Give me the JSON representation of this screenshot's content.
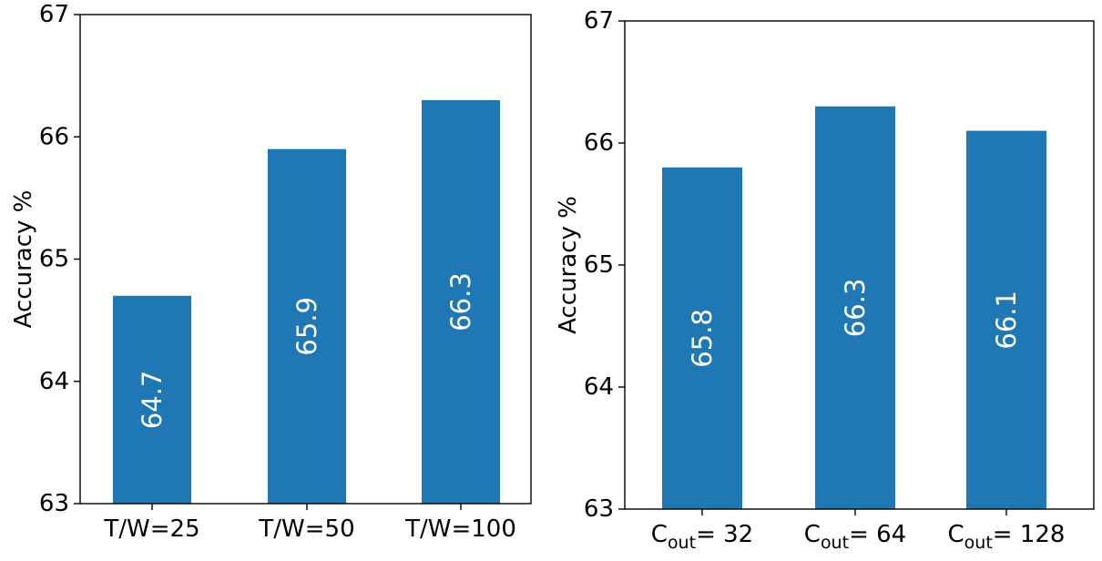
{
  "chart_data": [
    {
      "type": "bar",
      "title": "",
      "xlabel": "",
      "ylabel": "Accuracy %",
      "ylim": [
        63,
        67
      ],
      "yticks": [
        "63",
        "64",
        "65",
        "66",
        "67"
      ],
      "categories": [
        {
          "text": "T/W=25"
        },
        {
          "text": "T/W=50"
        },
        {
          "text": "T/W=100"
        }
      ],
      "values": [
        64.7,
        65.9,
        66.3
      ],
      "value_labels": [
        "64.7",
        "65.9",
        "66.3"
      ],
      "bar_color": "#1f77b4",
      "grid": false
    },
    {
      "type": "bar",
      "title": "",
      "xlabel": "",
      "ylabel": "Accuracy %",
      "ylim": [
        63,
        67
      ],
      "yticks": [
        "63",
        "64",
        "65",
        "66",
        "67"
      ],
      "categories": [
        {
          "text": "C",
          "sub": "out",
          "suffix": "= 32"
        },
        {
          "text": "C",
          "sub": "out",
          "suffix": "= 64"
        },
        {
          "text": "C",
          "sub": "out",
          "suffix": "= 128"
        }
      ],
      "values": [
        65.8,
        66.3,
        66.1
      ],
      "value_labels": [
        "65.8",
        "66.3",
        "66.1"
      ],
      "bar_color": "#1f77b4",
      "grid": false
    }
  ]
}
